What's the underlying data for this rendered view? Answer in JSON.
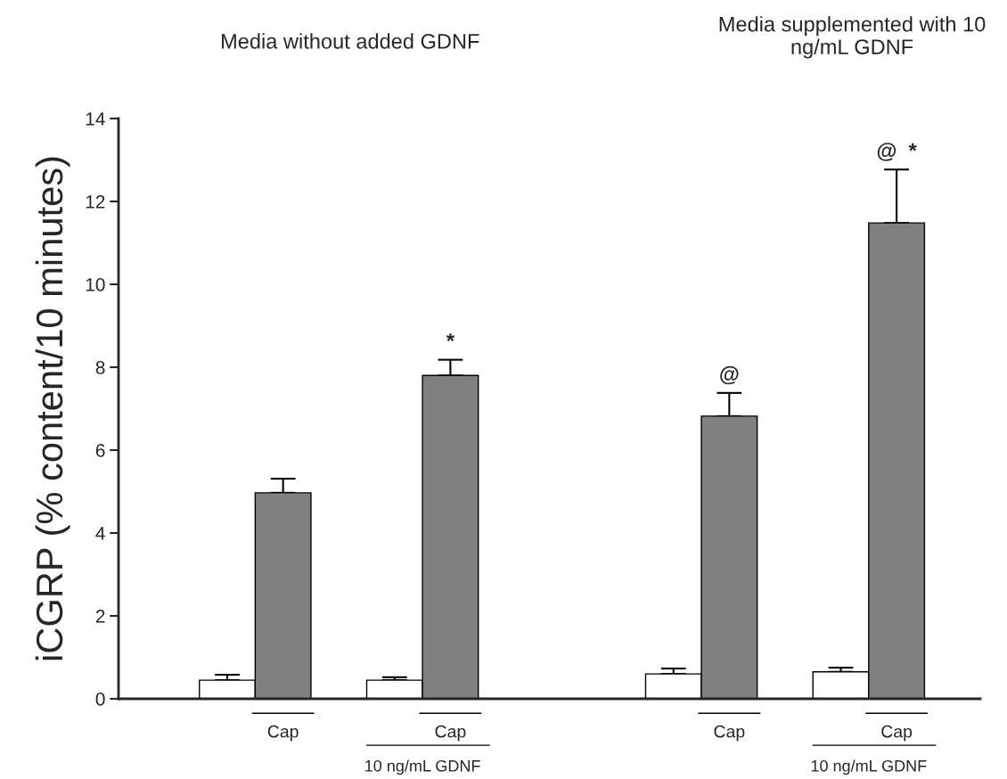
{
  "chart_data": {
    "type": "bar",
    "ylabel": "iCGRP (% content/10 minutes)",
    "categories": [
      null,
      "Cap",
      null,
      null,
      "Cap",
      null,
      null,
      null,
      null,
      "Cap",
      null,
      null,
      "Cap"
    ],
    "values": [
      0.45,
      4.97,
      null,
      0.45,
      7.8,
      null,
      null,
      null,
      0.6,
      6.82,
      null,
      0.65,
      11.48
    ],
    "colors": [
      "#ffffff",
      "#808080",
      null,
      "#ffffff",
      "#808080",
      null,
      null,
      null,
      "#ffffff",
      "#808080",
      null,
      "#ffffff",
      "#808080"
    ],
    "errors": [
      [
        0.45,
        0.58
      ],
      [
        4.97,
        5.31
      ],
      null,
      [
        0.45,
        0.52
      ],
      [
        7.8,
        8.18
      ],
      null,
      null,
      null,
      [
        0.6,
        0.73
      ],
      [
        6.82,
        7.38
      ],
      null,
      [
        0.65,
        0.75
      ],
      [
        11.48,
        12.77
      ]
    ],
    "value_labels": [
      null,
      null,
      null,
      null,
      "*",
      null,
      null,
      null,
      null,
      "@",
      null,
      null,
      "@  *"
    ],
    "ylim": [
      0,
      14
    ],
    "yticks": [
      0,
      2,
      4,
      6,
      8,
      10,
      12,
      14
    ],
    "grid": false,
    "legend": false,
    "annotations": [
      "Media without added GDNF",
      "Media supplemented with 10\nng/mL GDNF",
      "10 ng/mL GDNF",
      "10 ng/mL GDNF"
    ]
  }
}
